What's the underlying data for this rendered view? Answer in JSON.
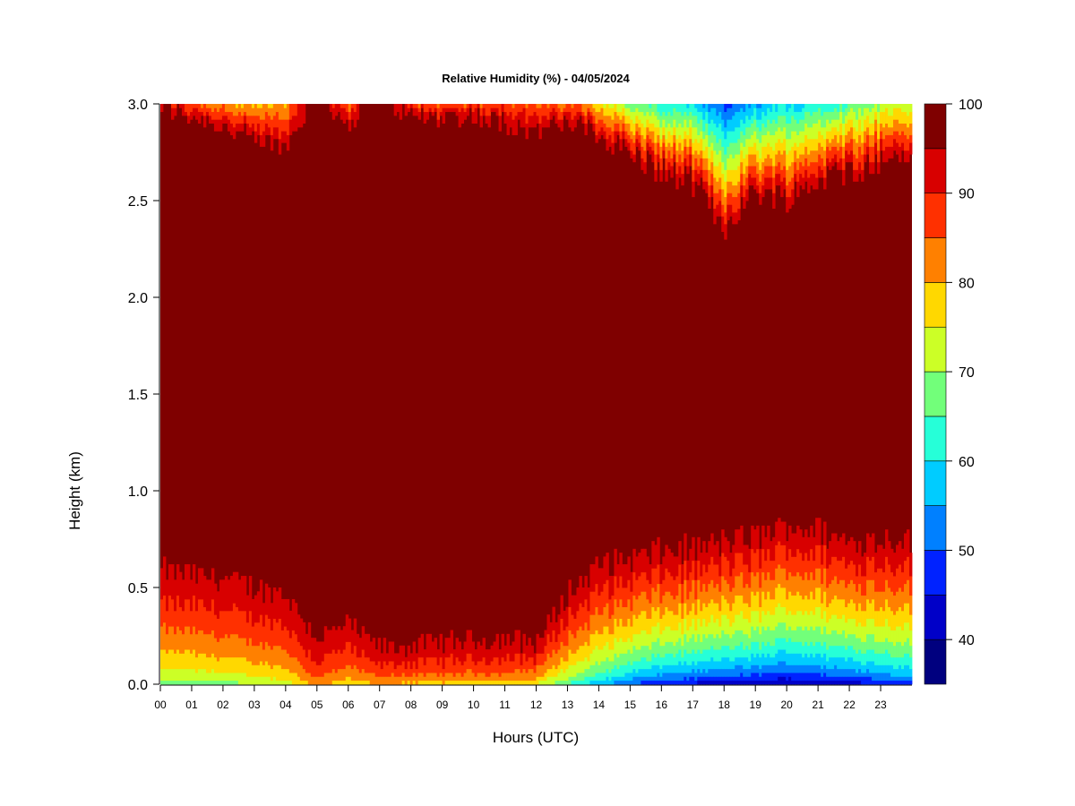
{
  "chart_data": {
    "type": "heatmap",
    "title": "Relative Humidity (%) - 04/05/2024",
    "xlabel": "Hours (UTC)",
    "ylabel": "Height (km)",
    "xlim": [
      0,
      24
    ],
    "ylim": [
      0,
      3.0
    ],
    "x_tick_labels": [
      "00",
      "01",
      "02",
      "03",
      "04",
      "05",
      "06",
      "07",
      "08",
      "09",
      "10",
      "11",
      "12",
      "13",
      "14",
      "15",
      "16",
      "17",
      "18",
      "19",
      "20",
      "21",
      "22",
      "23"
    ],
    "y_tick_values": [
      0.0,
      0.5,
      1.0,
      1.5,
      2.0,
      2.5,
      3.0
    ],
    "y_tick_labels": [
      "0.0",
      "0.5",
      "1.0",
      "1.5",
      "2.0",
      "2.5",
      "3.0"
    ],
    "colorbar": {
      "range": [
        35,
        100
      ],
      "tick_values": [
        40,
        50,
        60,
        70,
        80,
        90,
        100
      ],
      "tick_labels": [
        "40",
        "50",
        "60",
        "70",
        "80",
        "90",
        "100"
      ],
      "levels": [
        {
          "min": 35,
          "max": 40,
          "color": "#00007f"
        },
        {
          "min": 40,
          "max": 45,
          "color": "#0000c8"
        },
        {
          "min": 45,
          "max": 50,
          "color": "#0022ff"
        },
        {
          "min": 50,
          "max": 55,
          "color": "#0080ff"
        },
        {
          "min": 55,
          "max": 60,
          "color": "#00ccff"
        },
        {
          "min": 60,
          "max": 65,
          "color": "#26ffd8"
        },
        {
          "min": 65,
          "max": 70,
          "color": "#72ff7a"
        },
        {
          "min": 70,
          "max": 75,
          "color": "#ccff26"
        },
        {
          "min": 75,
          "max": 80,
          "color": "#ffd800"
        },
        {
          "min": 80,
          "max": 85,
          "color": "#ff8000"
        },
        {
          "min": 85,
          "max": 90,
          "color": "#ff3000"
        },
        {
          "min": 90,
          "max": 95,
          "color": "#d80000"
        },
        {
          "min": 95,
          "max": 100,
          "color": "#7f0000"
        }
      ]
    },
    "field_summary": {
      "hours": [
        0,
        1,
        2,
        3,
        4,
        5,
        6,
        7,
        8,
        9,
        10,
        11,
        12,
        13,
        14,
        15,
        16,
        17,
        18,
        19,
        20,
        21,
        22,
        23,
        24
      ],
      "surface_rh": [
        65,
        65,
        66,
        68,
        70,
        80,
        74,
        78,
        76,
        76,
        76,
        76,
        72,
        62,
        54,
        47,
        42,
        40,
        38,
        37,
        35,
        37,
        38,
        42,
        45
      ],
      "lower_moist_top_km": [
        0.78,
        0.75,
        0.72,
        0.68,
        0.65,
        0.4,
        0.45,
        0.3,
        0.3,
        0.32,
        0.35,
        0.35,
        0.3,
        0.6,
        0.75,
        0.78,
        0.8,
        0.82,
        0.85,
        0.88,
        0.95,
        0.92,
        0.85,
        0.88,
        0.9
      ],
      "upper_dry_bottom_km": [
        2.95,
        2.9,
        2.85,
        2.75,
        2.7,
        3.0,
        2.85,
        3.0,
        2.9,
        2.9,
        2.9,
        2.85,
        2.8,
        2.85,
        2.8,
        2.7,
        2.6,
        2.55,
        2.3,
        2.5,
        2.45,
        2.55,
        2.6,
        2.65,
        2.7
      ],
      "upper_min_rh": [
        88,
        86,
        82,
        78,
        80,
        100,
        84,
        100,
        86,
        85,
        86,
        88,
        84,
        85,
        78,
        68,
        62,
        58,
        48,
        55,
        58,
        62,
        66,
        70,
        72
      ]
    }
  }
}
